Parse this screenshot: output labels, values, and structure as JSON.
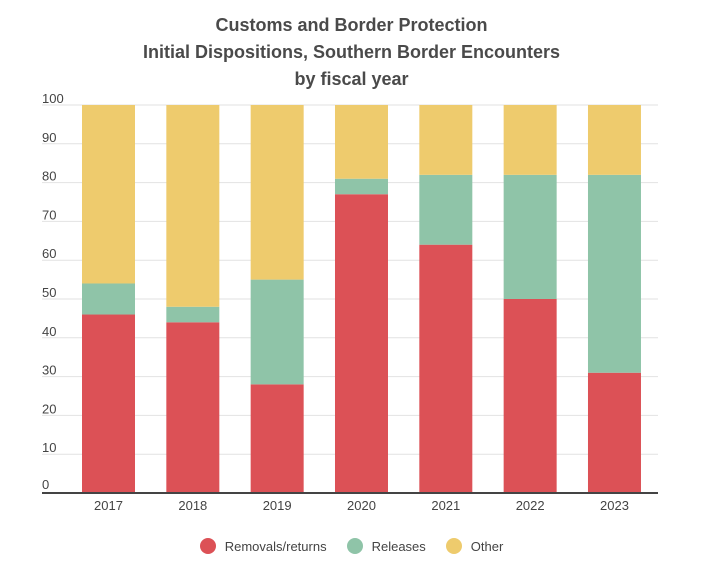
{
  "chart_data": {
    "type": "bar",
    "stacked": true,
    "title_lines": [
      "Customs and Border Protection",
      "Initial Dispositions, Southern Border Encounters",
      "by fiscal year"
    ],
    "categories": [
      "2017",
      "2018",
      "2019",
      "2020",
      "2021",
      "2022",
      "2023"
    ],
    "series": [
      {
        "name": "Removals/returns",
        "color": "#dc5156",
        "values": [
          46,
          44,
          28,
          77,
          64,
          50,
          31
        ]
      },
      {
        "name": "Releases",
        "color": "#8fc4a8",
        "values": [
          8,
          4,
          27,
          4,
          18,
          32,
          51
        ]
      },
      {
        "name": "Other",
        "color": "#eecb6d",
        "values": [
          46,
          52,
          45,
          19,
          18,
          18,
          18
        ]
      }
    ],
    "ylim": [
      0,
      100
    ],
    "yticks": [
      "0",
      "10",
      "20",
      "30",
      "40",
      "50",
      "60",
      "70",
      "80",
      "90",
      "100"
    ],
    "xlabel": "",
    "ylabel": "",
    "grid": true,
    "legend_position": "bottom-center"
  }
}
